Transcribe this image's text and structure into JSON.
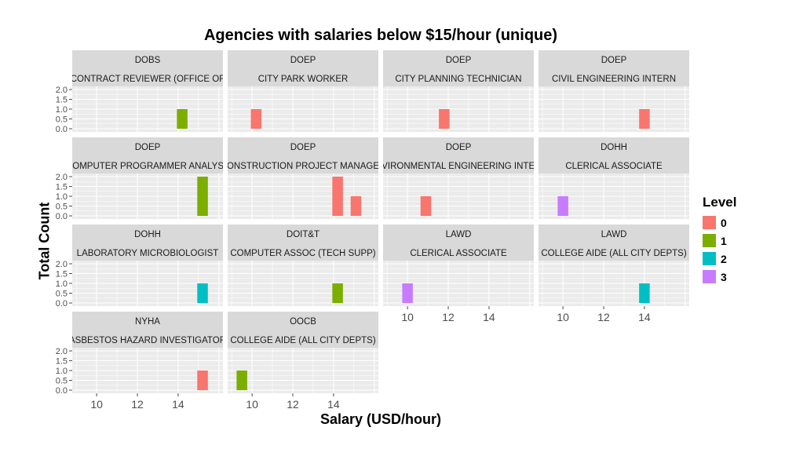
{
  "chart_data": {
    "type": "bar",
    "title": "Agencies with salaries below $15/hour (unique)",
    "xlabel": "Salary (USD/hour)",
    "ylabel": "Total Count",
    "x_ticks": [
      10,
      12,
      14
    ],
    "y_ticks": [
      "0.0",
      "0.5",
      "1.0",
      "1.5",
      "2.0"
    ],
    "xlim": [
      8.8,
      16.2
    ],
    "ylim": [
      0,
      2.0
    ],
    "legend_title": "Level",
    "legend_placement": "right",
    "levels": [
      {
        "label": "0",
        "color": "#F8766D"
      },
      {
        "label": "1",
        "color": "#7CAE00"
      },
      {
        "label": "2",
        "color": "#00BFC4"
      },
      {
        "label": "3",
        "color": "#C77CFF"
      }
    ],
    "facets": [
      {
        "agency": "DOBS",
        "title": "CONTRACT REVIEWER (OFFICE OF",
        "bars": [
          {
            "x": 14.2,
            "count": 1,
            "level": 1
          }
        ]
      },
      {
        "agency": "DOEP",
        "title": "CITY PARK WORKER",
        "bars": [
          {
            "x": 10.2,
            "count": 1,
            "level": 0
          }
        ]
      },
      {
        "agency": "DOEP",
        "title": "CITY PLANNING TECHNICIAN",
        "bars": [
          {
            "x": 11.8,
            "count": 1,
            "level": 0
          }
        ]
      },
      {
        "agency": "DOEP",
        "title": "CIVIL ENGINEERING INTERN",
        "bars": [
          {
            "x": 14.0,
            "count": 1,
            "level": 0
          }
        ]
      },
      {
        "agency": "DOEP",
        "title": "COMPUTER PROGRAMMER ANALYST",
        "bars": [
          {
            "x": 15.2,
            "count": 2,
            "level": 1
          }
        ]
      },
      {
        "agency": "DOEP",
        "title": "CONSTRUCTION PROJECT MANAGER",
        "bars": [
          {
            "x": 14.2,
            "count": 2,
            "level": 0
          },
          {
            "x": 15.1,
            "count": 1,
            "level": 0
          }
        ]
      },
      {
        "agency": "DOEP",
        "title": "ENVIRONMENTAL ENGINEERING INTERN",
        "bars": [
          {
            "x": 10.9,
            "count": 1,
            "level": 0
          }
        ]
      },
      {
        "agency": "DOHH",
        "title": "CLERICAL ASSOCIATE",
        "bars": [
          {
            "x": 10.0,
            "count": 1,
            "level": 3
          }
        ]
      },
      {
        "agency": "DOHH",
        "title": "LABORATORY MICROBIOLOGIST",
        "bars": [
          {
            "x": 15.2,
            "count": 1,
            "level": 2
          }
        ]
      },
      {
        "agency": "DOIT&T",
        "title": "COMPUTER ASSOC (TECH SUPP)",
        "bars": [
          {
            "x": 14.2,
            "count": 1,
            "level": 1
          }
        ]
      },
      {
        "agency": "LAWD",
        "title": "CLERICAL ASSOCIATE",
        "bars": [
          {
            "x": 10.0,
            "count": 1,
            "level": 3
          }
        ]
      },
      {
        "agency": "LAWD",
        "title": "COLLEGE AIDE (ALL CITY DEPTS)",
        "bars": [
          {
            "x": 14.0,
            "count": 1,
            "level": 2
          }
        ]
      },
      {
        "agency": "NYHA",
        "title": "ASBESTOS HAZARD INVESTIGATOR",
        "bars": [
          {
            "x": 15.2,
            "count": 1,
            "level": 0
          }
        ]
      },
      {
        "agency": "OOCB",
        "title": "COLLEGE AIDE (ALL CITY DEPTS)",
        "bars": [
          {
            "x": 9.5,
            "count": 1,
            "level": 1
          }
        ]
      }
    ]
  }
}
